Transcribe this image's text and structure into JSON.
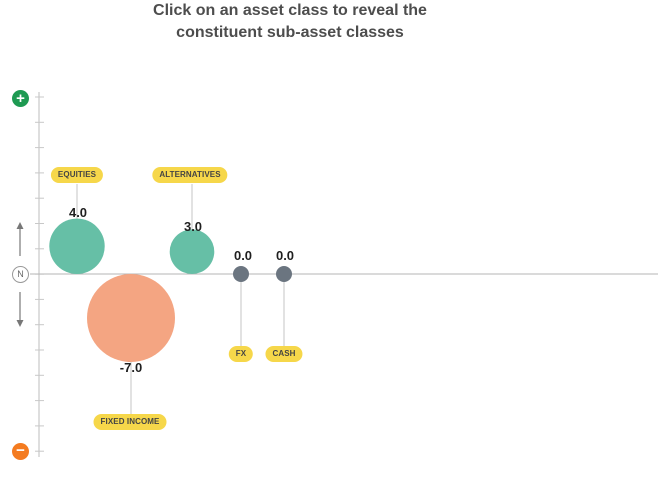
{
  "header": {
    "line1": "Click on an asset class to reveal the",
    "line2": "constituent sub-asset classes"
  },
  "axis": {
    "neutral_label": "N",
    "plus_symbol": "+",
    "minus_symbol": "−"
  },
  "chart_data": {
    "type": "scatter",
    "title": "",
    "ylim": [
      -7,
      7
    ],
    "items": [
      {
        "name": "EQUITIES",
        "value": 4.0,
        "value_label": "4.0",
        "color": "#66bfa6"
      },
      {
        "name": "FIXED INCOME",
        "value": -7.0,
        "value_label": "-7.0",
        "color": "#f4a582"
      },
      {
        "name": "ALTERNATIVES",
        "value": 3.0,
        "value_label": "3.0",
        "color": "#66bfa6"
      },
      {
        "name": "FX",
        "value": 0.0,
        "value_label": "0.0",
        "color": "#6b7580"
      },
      {
        "name": "CASH",
        "value": 0.0,
        "value_label": "0.0",
        "color": "#6b7580"
      }
    ]
  },
  "colors": {
    "positive": "#66bfa6",
    "negative": "#f4a582",
    "neutral": "#6b7580",
    "label_bg": "#f6d74a",
    "plus_button": "#1e9a52",
    "minus_button": "#f47b20"
  }
}
